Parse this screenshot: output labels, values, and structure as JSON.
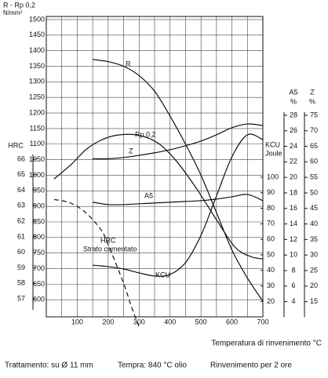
{
  "chart_data": {
    "type": "line",
    "title": "R - Rp 0,2",
    "y_unit": "N/mm²",
    "xlabel": "Temperatura di rinvenimento °C",
    "xlim": [
      0,
      700
    ],
    "xticks": [
      100,
      200,
      300,
      400,
      500,
      600,
      700
    ],
    "xgrid": [
      50,
      100,
      150,
      200,
      250,
      300,
      350,
      400,
      450,
      500,
      550,
      600,
      650
    ],
    "ylim": [
      525,
      1510
    ],
    "yticks": [
      600,
      650,
      700,
      750,
      800,
      850,
      900,
      950,
      1000,
      1050,
      1100,
      1150,
      1200,
      1250,
      1300,
      1350,
      1400,
      1450,
      1500
    ],
    "grid": true,
    "axes": {
      "hrc": {
        "label": "HRC",
        "ylim": [
          56.3,
          66.3
        ],
        "yticks": [
          57,
          58,
          59,
          60,
          61,
          62,
          63,
          64,
          65,
          66
        ]
      },
      "a5": {
        "label": "A5",
        "unit": "%",
        "ylim": [
          2,
          28.4
        ],
        "yticks": [
          4,
          6,
          8,
          10,
          12,
          14,
          16,
          18,
          20,
          22,
          24,
          26,
          28
        ]
      },
      "z": {
        "label": "Z",
        "unit": "%",
        "ylim": [
          10,
          76
        ],
        "yticks": [
          15,
          20,
          25,
          30,
          35,
          40,
          45,
          50,
          55,
          60,
          65,
          70,
          75
        ]
      },
      "kcu": {
        "label": "KCU",
        "unit": "Joule",
        "ylim": [
          15,
          102
        ],
        "yticks": [
          20,
          30,
          40,
          50,
          60,
          70,
          80,
          90,
          100
        ]
      }
    },
    "series": [
      {
        "name": "R",
        "axis": "y",
        "color": "#111111",
        "style": "solid",
        "x": [
          150,
          200,
          250,
          300,
          350,
          400,
          450,
          500,
          550,
          600,
          650,
          700
        ],
        "values": [
          1372,
          1365,
          1350,
          1320,
          1270,
          1190,
          1100,
          1000,
          880,
          760,
          670,
          595
        ]
      },
      {
        "name": "Rp 0,2",
        "axis": "y",
        "color": "#111111",
        "style": "solid",
        "x": [
          25,
          80,
          130,
          180,
          230,
          295,
          360,
          420,
          485,
          550,
          610,
          660,
          700
        ],
        "values": [
          988,
          1034,
          1084,
          1114,
          1129,
          1129,
          1104,
          1046,
          958,
          857,
          769,
          739,
          731
        ]
      },
      {
        "name": "Z",
        "axis": "z",
        "color": "#111111",
        "style": "solid",
        "x": [
          150,
          200,
          250,
          300,
          350,
          400,
          450,
          500,
          550,
          600,
          650,
          700
        ],
        "values": [
          61,
          61,
          61.4,
          62.1,
          62.9,
          63.9,
          65.2,
          66.7,
          68.7,
          71,
          72.2,
          71.7
        ]
      },
      {
        "name": "A5",
        "axis": "a5",
        "color": "#111111",
        "style": "solid",
        "x": [
          150,
          200,
          250,
          300,
          350,
          400,
          450,
          500,
          550,
          600,
          650,
          700
        ],
        "values": [
          16.8,
          16.5,
          16.5,
          16.6,
          16.7,
          16.8,
          16.9,
          17.0,
          17.2,
          17.5,
          17.8,
          17.0
        ]
      },
      {
        "name": "KCU",
        "axis": "kcu",
        "color": "#111111",
        "style": "solid",
        "x": [
          150,
          200,
          250,
          300,
          350,
          400,
          450,
          500,
          550,
          600,
          650,
          700
        ],
        "values": [
          43.4,
          42.4,
          40.9,
          38.4,
          36.4,
          37.4,
          45,
          62.6,
          87.9,
          113.1,
          127.3,
          124.2
        ]
      },
      {
        "name": "HRC",
        "note": "Strato cementato",
        "axis": "hrc",
        "color": "#111111",
        "style": "dashed",
        "x": [
          25,
          75,
          125,
          175,
          200,
          250,
          275,
          300
        ],
        "values": [
          63.4,
          63.2,
          62.6,
          61.5,
          60.5,
          58,
          56.5,
          55.2
        ]
      }
    ],
    "footer": [
      "Trattamento: su Ø 11 mm",
      "Tempra: 840 °C olio",
      "Rinvenimento per 2 ore"
    ]
  }
}
